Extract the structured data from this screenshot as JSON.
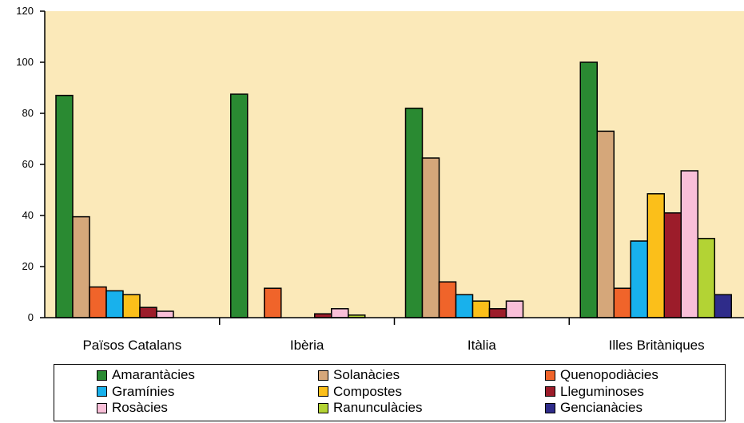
{
  "chart_data": {
    "type": "bar",
    "title": "",
    "xlabel": "",
    "ylabel": "",
    "ylim": [
      0,
      120
    ],
    "yticks": [
      "0",
      "20",
      "40",
      "60",
      "80",
      "100",
      "120"
    ],
    "grid": false,
    "background_color": "#fbe9b9",
    "legend_position": "bottom",
    "categories": [
      "Països Catalans",
      "Ibèria",
      "Itàlia",
      "Illes Britàniques"
    ],
    "series": [
      {
        "name": "Amarantàcies",
        "color": "#2a8a32",
        "values": [
          87,
          87.5,
          82,
          100
        ]
      },
      {
        "name": "Solanàcies",
        "color": "#d5a77a",
        "values": [
          39.5,
          null,
          62.5,
          73
        ]
      },
      {
        "name": "Quenopodiàcies",
        "color": "#f0642a",
        "values": [
          12,
          11.5,
          14,
          11.5
        ]
      },
      {
        "name": "Gramínies",
        "color": "#18b1ec",
        "values": [
          10.5,
          null,
          9,
          30
        ]
      },
      {
        "name": "Compostes",
        "color": "#fbbf1a",
        "values": [
          9,
          null,
          6.5,
          48.5
        ]
      },
      {
        "name": "Lleguminoses",
        "color": "#9c1c2a",
        "values": [
          4,
          1.5,
          3.5,
          41
        ]
      },
      {
        "name": "Rosàcies",
        "color": "#f9bfd8",
        "values": [
          2.5,
          3.5,
          6.5,
          57.5
        ]
      },
      {
        "name": "Ranunculàcies",
        "color": "#b3d334",
        "values": [
          null,
          1,
          null,
          31
        ]
      },
      {
        "name": "Gencianàcies",
        "color": "#2f2c8a",
        "values": [
          null,
          null,
          null,
          9
        ]
      }
    ]
  }
}
